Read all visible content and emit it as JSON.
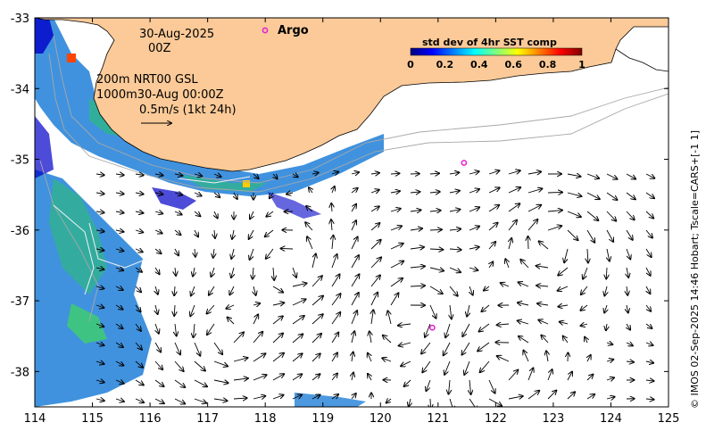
{
  "map": {
    "date_line1": "30-Aug-2025",
    "date_line2": "00Z",
    "contour_line1": "200m  NRT00 GSL",
    "contour_line2": "1000m30-Aug 00:00Z",
    "scale_label": "0.5m/s (1kt 24h)",
    "argo_legend_label": "Argo",
    "credit": "© IMOS 02-Sep-2025 14:46 Hobart; Tscale=CARS+[-1 1]",
    "colors": {
      "land": "#fbca98",
      "ocean": "#ffffff",
      "argo": "#e81ad6",
      "arrow": "#000000",
      "contour": "#a8a8a8"
    }
  },
  "colorbar": {
    "title": "std dev of 4hr SST comp",
    "ticks": [
      "0",
      "0.2",
      "0.4",
      "0.6",
      "0.8",
      "1"
    ],
    "colormap": [
      "#00007f",
      "#0000ff",
      "#007fff",
      "#00ffff",
      "#7fff7f",
      "#ffff00",
      "#ff7f00",
      "#ff0000",
      "#7f0000"
    ]
  },
  "axes": {
    "x_ticks": [
      "114",
      "115",
      "116",
      "117",
      "118",
      "119",
      "120",
      "121",
      "122",
      "123",
      "124",
      "125"
    ],
    "y_ticks": [
      "-33",
      "-34",
      "-35",
      "-36",
      "-37",
      "-38"
    ],
    "lon_range": [
      114,
      125
    ],
    "lat_range": [
      -38.5,
      -33
    ]
  },
  "argo_floats": [
    {
      "lon": 121.45,
      "lat": -35.05
    },
    {
      "lon": 120.9,
      "lat": -37.38
    }
  ]
}
